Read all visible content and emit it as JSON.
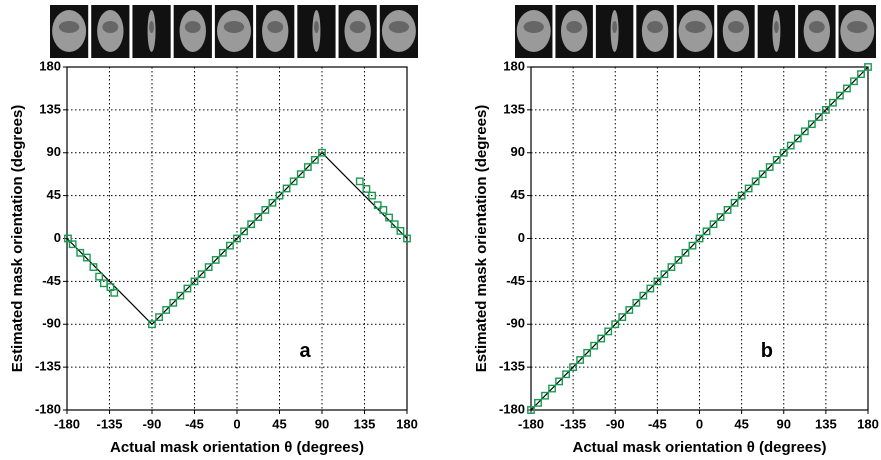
{
  "chart_data": [
    {
      "type": "scatter",
      "label": "a",
      "xlabel": "Actual mask orientation θ (degrees)",
      "ylabel": "Estimated  mask orientation (degrees)",
      "xlim": [
        -180,
        180
      ],
      "ylim": [
        -180,
        180
      ],
      "xticks": [
        -180,
        -135,
        -90,
        -45,
        0,
        45,
        90,
        135,
        180
      ],
      "yticks": [
        -180,
        -135,
        -90,
        -45,
        0,
        45,
        90,
        135,
        180
      ],
      "grid": true,
      "series": [
        {
          "mode": "line",
          "color": "#000000",
          "x": [
            -180,
            -90,
            90,
            180
          ],
          "values": [
            0,
            -90,
            90,
            0
          ]
        },
        {
          "mode": "markers",
          "marker": "square",
          "color": "#1a9a50",
          "x": [
            -179,
            -174,
            -166,
            -159,
            -152,
            -146,
            -141,
            -134,
            -130,
            -90,
            -82.5,
            -75,
            -67.5,
            -60,
            -52.5,
            -45,
            -37.5,
            -30,
            -22.5,
            -15,
            -7.5,
            0,
            7.5,
            15,
            22.5,
            30,
            37.5,
            45,
            52.5,
            60,
            67.5,
            75,
            82.5,
            90,
            130,
            137,
            143,
            149,
            155,
            161,
            167,
            173,
            180
          ],
          "values": [
            0,
            -6,
            -15,
            -20,
            -30,
            -40,
            -47,
            -51,
            -57,
            -90,
            -82.5,
            -75,
            -67.5,
            -60,
            -52.5,
            -45,
            -37.5,
            -30,
            -22.5,
            -15,
            -7.5,
            0,
            7.5,
            15,
            22.5,
            30,
            37.5,
            45,
            52.5,
            60,
            67.5,
            75,
            82.5,
            90,
            60,
            52,
            45,
            35,
            30,
            22,
            15,
            8,
            0
          ]
        }
      ]
    },
    {
      "type": "scatter",
      "label": "b",
      "xlabel": "Actual mask orientation θ (degrees)",
      "ylabel": "Estimated  mask orientation (degrees)",
      "xlim": [
        -180,
        180
      ],
      "ylim": [
        -180,
        180
      ],
      "xticks": [
        -180,
        -135,
        -90,
        -45,
        0,
        45,
        90,
        135,
        180
      ],
      "yticks": [
        -180,
        -135,
        -90,
        -45,
        0,
        45,
        90,
        135,
        180
      ],
      "grid": true,
      "series": [
        {
          "mode": "line",
          "color": "#000000",
          "x": [
            -180,
            180
          ],
          "values": [
            -180,
            180
          ]
        },
        {
          "mode": "markers",
          "marker": "square",
          "color": "#1a9a50",
          "x": [
            -180,
            -172.5,
            -165,
            -157.5,
            -150,
            -142.5,
            -135,
            -127.5,
            -120,
            -112.5,
            -105,
            -97.5,
            -90,
            -82.5,
            -75,
            -67.5,
            -60,
            -52.5,
            -45,
            -37.5,
            -30,
            -22.5,
            -15,
            -7.5,
            0,
            7.5,
            15,
            22.5,
            30,
            37.5,
            45,
            52.5,
            60,
            67.5,
            75,
            82.5,
            90,
            97.5,
            105,
            112.5,
            120,
            127.5,
            135,
            142.5,
            150,
            157.5,
            165,
            172.5,
            180
          ],
          "values": [
            -180,
            -172.5,
            -165,
            -157.5,
            -150,
            -142.5,
            -135,
            -127.5,
            -120,
            -112.5,
            -105,
            -97.5,
            -90,
            -82.5,
            -75,
            -67.5,
            -60,
            -52.5,
            -45,
            -37.5,
            -30,
            -22.5,
            -15,
            -7.5,
            0,
            7.5,
            15,
            22.5,
            30,
            37.5,
            45,
            52.5,
            60,
            67.5,
            75,
            82.5,
            90,
            97.5,
            105,
            112.5,
            120,
            127.5,
            135,
            142.5,
            150,
            157.5,
            165,
            172.5,
            180
          ]
        }
      ]
    }
  ]
}
